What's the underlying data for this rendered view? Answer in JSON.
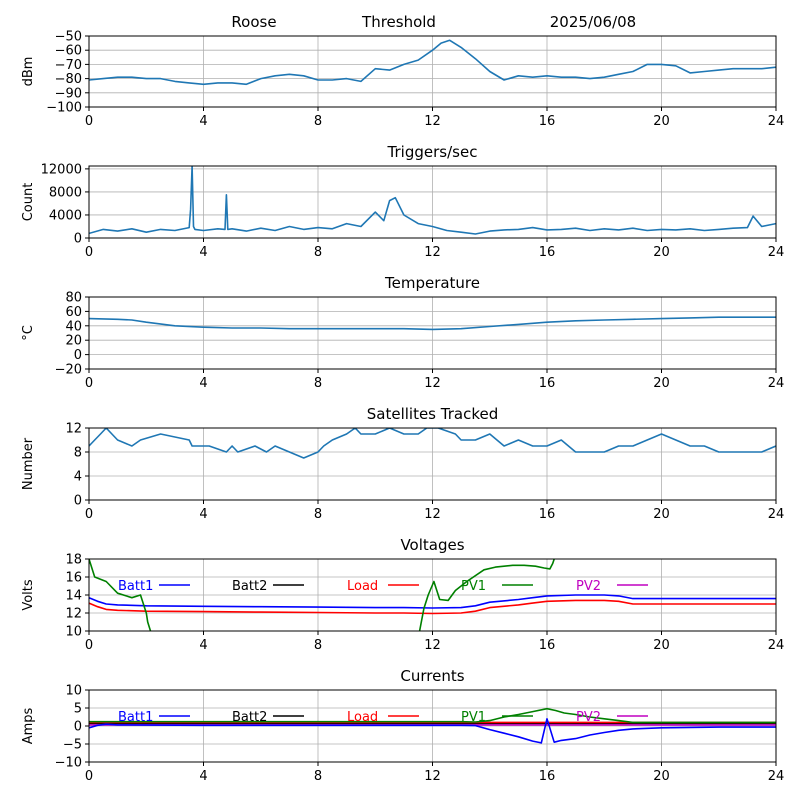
{
  "chart_data": [
    {
      "type": "line",
      "header": {
        "station": "Roose",
        "label": "Threshold",
        "date": "2025/06/08"
      },
      "title": "",
      "xlabel": "",
      "ylabel": "dBm",
      "xlim": [
        0,
        24
      ],
      "ylim": [
        -100,
        -50
      ],
      "xticks": [
        "0",
        "4",
        "8",
        "12",
        "16",
        "20",
        "24"
      ],
      "yticks": [
        "−100",
        "−90",
        "−80",
        "−70",
        "−60",
        "−50"
      ],
      "grid": true,
      "series": [
        {
          "color": "#1f77b4",
          "x": [
            0,
            0.5,
            1,
            1.5,
            2,
            2.5,
            3,
            3.5,
            4,
            4.5,
            5,
            5.5,
            6,
            6.5,
            7,
            7.5,
            8,
            8.5,
            9,
            9.5,
            10,
            10.5,
            11,
            11.5,
            12,
            12.3,
            12.6,
            13,
            13.5,
            14,
            14.5,
            15,
            15.5,
            16,
            16.5,
            17,
            17.5,
            18,
            18.5,
            19,
            19.5,
            20,
            20.5,
            21,
            21.5,
            22,
            22.5,
            23,
            23.5,
            24
          ],
          "y": [
            -81,
            -80,
            -79,
            -79,
            -80,
            -80,
            -82,
            -83,
            -84,
            -83,
            -83,
            -84,
            -80,
            -78,
            -77,
            -78,
            -81,
            -81,
            -80,
            -82,
            -73,
            -74,
            -70,
            -67,
            -60,
            -55,
            -53,
            -58,
            -66,
            -75,
            -81,
            -78,
            -79,
            -78,
            -79,
            -79,
            -80,
            -79,
            -77,
            -75,
            -70,
            -70,
            -71,
            -76,
            -75,
            -74,
            -73,
            -73,
            -73,
            -72
          ]
        }
      ]
    },
    {
      "type": "line",
      "title": "Triggers/sec",
      "xlabel": "",
      "ylabel": "Count",
      "xlim": [
        0,
        24
      ],
      "ylim": [
        0,
        12500
      ],
      "xticks": [
        "0",
        "4",
        "8",
        "12",
        "16",
        "20",
        "24"
      ],
      "yticks": [
        "0",
        "4000",
        "8000",
        "12000"
      ],
      "grid": true,
      "series": [
        {
          "color": "#1f77b4",
          "x": [
            0,
            0.5,
            1,
            1.5,
            2,
            2.5,
            3,
            3.5,
            3.55,
            3.6,
            3.65,
            3.7,
            4,
            4.5,
            4.75,
            4.8,
            4.85,
            5,
            5.5,
            6,
            6.5,
            7,
            7.5,
            8,
            8.5,
            9,
            9.5,
            10,
            10.3,
            10.5,
            10.7,
            11,
            11.5,
            12,
            12.5,
            13,
            13.5,
            14,
            14.5,
            15,
            15.5,
            16,
            16.5,
            17,
            17.5,
            18,
            18.5,
            19,
            19.5,
            20,
            20.5,
            21,
            21.5,
            22,
            22.5,
            23,
            23.2,
            23.5,
            24
          ],
          "y": [
            800,
            1500,
            1200,
            1600,
            1000,
            1500,
            1300,
            1800,
            5000,
            12500,
            2000,
            1500,
            1300,
            1600,
            1500,
            7500,
            1500,
            1600,
            1200,
            1700,
            1300,
            2000,
            1500,
            1800,
            1600,
            2500,
            2000,
            4500,
            3000,
            6500,
            7000,
            4000,
            2500,
            2000,
            1300,
            1000,
            700,
            1200,
            1400,
            1500,
            1800,
            1400,
            1500,
            1700,
            1300,
            1600,
            1400,
            1700,
            1300,
            1500,
            1400,
            1600,
            1300,
            1500,
            1700,
            1800,
            3800,
            2000,
            2500
          ]
        }
      ]
    },
    {
      "type": "line",
      "title": "Temperature",
      "xlabel": "",
      "ylabel": "°C",
      "xlim": [
        0,
        24
      ],
      "ylim": [
        -20,
        80
      ],
      "xticks": [
        "0",
        "4",
        "8",
        "12",
        "16",
        "20",
        "24"
      ],
      "yticks": [
        "−20",
        "0",
        "20",
        "40",
        "60",
        "80"
      ],
      "grid": true,
      "series": [
        {
          "color": "#1f77b4",
          "x": [
            0,
            1,
            1.5,
            2,
            3,
            4,
            5,
            6,
            7,
            8,
            9,
            10,
            11,
            12,
            13,
            14,
            15,
            16,
            17,
            18,
            19,
            20,
            21,
            22,
            23,
            24
          ],
          "y": [
            50,
            49,
            48,
            45,
            40,
            38,
            37,
            37,
            36,
            36,
            36,
            36,
            36,
            35,
            36,
            39,
            42,
            45,
            47,
            48,
            49,
            50,
            51,
            52,
            52,
            52
          ]
        }
      ]
    },
    {
      "type": "line",
      "title": "Satellites Tracked",
      "xlabel": "",
      "ylabel": "Number",
      "xlim": [
        0,
        24
      ],
      "ylim": [
        0,
        12
      ],
      "xticks": [
        "0",
        "4",
        "8",
        "12",
        "16",
        "20",
        "24"
      ],
      "yticks": [
        "0",
        "4",
        "8",
        "12"
      ],
      "grid": true,
      "series": [
        {
          "color": "#1f77b4",
          "x": [
            0,
            0.2,
            0.4,
            0.6,
            0.8,
            1.0,
            1.5,
            1.8,
            2.5,
            3.5,
            3.6,
            4.2,
            4.8,
            5.0,
            5.2,
            5.8,
            6.2,
            6.5,
            7.0,
            7.5,
            8.0,
            8.2,
            8.5,
            9.0,
            9.3,
            9.5,
            10.0,
            10.5,
            11.0,
            11.5,
            11.8,
            12.0,
            12.2,
            12.8,
            13.0,
            13.5,
            14.0,
            14.5,
            15.0,
            15.5,
            16.0,
            16.5,
            17.0,
            17.5,
            18.0,
            18.5,
            19.0,
            19.5,
            20.0,
            20.5,
            21.0,
            21.5,
            22.0,
            22.5,
            23.0,
            23.5,
            24.0
          ],
          "y": [
            9,
            10,
            11,
            12,
            11,
            10,
            9,
            10,
            11,
            10,
            9,
            9,
            8,
            9,
            8,
            9,
            8,
            9,
            8,
            7,
            8,
            9,
            10,
            11,
            12,
            11,
            11,
            12,
            11,
            11,
            12,
            12,
            12,
            11,
            10,
            10,
            11,
            9,
            10,
            9,
            9,
            10,
            8,
            8,
            8,
            9,
            9,
            10,
            11,
            10,
            9,
            9,
            8,
            8,
            8,
            8,
            9
          ]
        }
      ]
    },
    {
      "type": "line",
      "title": "Voltages",
      "xlabel": "",
      "ylabel": "Volts",
      "xlim": [
        0,
        24
      ],
      "ylim": [
        10,
        18
      ],
      "xticks": [
        "0",
        "4",
        "8",
        "12",
        "16",
        "20",
        "24"
      ],
      "yticks": [
        "10",
        "12",
        "14",
        "16",
        "18"
      ],
      "grid": true,
      "legend": [
        {
          "name": "Batt1",
          "color": "#0000ff"
        },
        {
          "name": "Batt2",
          "color": "#000000"
        },
        {
          "name": "Load",
          "color": "#ff0000"
        },
        {
          "name": "PV1",
          "color": "#008000"
        },
        {
          "name": "PV2",
          "color": "#c000c0"
        }
      ],
      "series": [
        {
          "color": "#0000ff",
          "x": [
            0,
            0.3,
            0.6,
            1,
            2,
            4,
            6,
            8,
            10,
            11,
            12,
            13,
            13.5,
            14,
            15,
            15.5,
            16,
            17,
            18,
            18.5,
            19,
            20,
            22,
            24
          ],
          "y": [
            13.7,
            13.3,
            13.0,
            12.9,
            12.8,
            12.75,
            12.7,
            12.65,
            12.6,
            12.6,
            12.55,
            12.6,
            12.8,
            13.2,
            13.5,
            13.7,
            13.9,
            14.0,
            14.0,
            13.9,
            13.6,
            13.6,
            13.6,
            13.6
          ]
        },
        {
          "color": "#ff0000",
          "x": [
            0,
            0.3,
            0.6,
            1,
            2,
            4,
            6,
            8,
            10,
            11,
            12,
            13,
            13.5,
            14,
            15,
            15.5,
            16,
            17,
            18,
            18.5,
            19,
            20,
            22,
            24
          ],
          "y": [
            13.1,
            12.7,
            12.4,
            12.3,
            12.2,
            12.15,
            12.1,
            12.05,
            12.0,
            12.0,
            11.95,
            12.0,
            12.2,
            12.6,
            12.9,
            13.1,
            13.3,
            13.4,
            13.4,
            13.3,
            13.0,
            13.0,
            13.0,
            13.0
          ]
        },
        {
          "color": "#008000",
          "x": [
            0,
            0.2,
            0.6,
            1,
            1.5,
            1.8,
            2.0,
            2.05,
            2.1,
            2.15
          ],
          "y": [
            18,
            16,
            15.5,
            14.2,
            13.7,
            14.0,
            12.0,
            11.0,
            10.5,
            10.0
          ]
        },
        {
          "color": "#008000",
          "x": [
            11.55,
            11.7,
            11.85,
            12.05,
            12.25,
            12.55,
            12.8,
            13.2,
            13.8,
            14.2,
            14.8,
            15.2,
            15.6,
            15.9,
            16.1,
            16.2,
            16.25
          ],
          "y": [
            10.0,
            12.5,
            14.0,
            15.5,
            13.5,
            13.4,
            14.5,
            15.5,
            16.8,
            17.1,
            17.3,
            17.3,
            17.2,
            17.0,
            16.9,
            17.5,
            18
          ]
        }
      ]
    },
    {
      "type": "line",
      "title": "Currents",
      "xlabel": "",
      "ylabel": "Amps",
      "xlim": [
        0,
        24
      ],
      "ylim": [
        -10,
        10
      ],
      "xticks": [
        "0",
        "4",
        "8",
        "12",
        "16",
        "20",
        "24"
      ],
      "yticks": [
        "−10",
        "−5",
        "0",
        "5",
        "10"
      ],
      "grid": true,
      "legend": [
        {
          "name": "Batt1",
          "color": "#0000ff"
        },
        {
          "name": "Batt2",
          "color": "#000000"
        },
        {
          "name": "Load",
          "color": "#ff0000"
        },
        {
          "name": "PV1",
          "color": "#008000"
        },
        {
          "name": "PV2",
          "color": "#c000c0"
        }
      ],
      "series": [
        {
          "color": "#000000",
          "x": [
            0,
            24
          ],
          "y": [
            0.7,
            0.7
          ]
        },
        {
          "color": "#c000c0",
          "x": [
            0,
            24
          ],
          "y": [
            0.3,
            0.3
          ]
        },
        {
          "color": "#ff0000",
          "x": [
            0,
            24
          ],
          "y": [
            1.0,
            1.0
          ]
        },
        {
          "color": "#008000",
          "x": [
            0,
            4,
            8,
            12,
            13,
            13.5,
            14,
            14.5,
            15,
            15.5,
            16,
            16.3,
            16.6,
            17,
            17.5,
            18,
            18.5,
            19,
            20,
            22,
            24
          ],
          "y": [
            1.2,
            1.2,
            1.2,
            1.2,
            1.2,
            1.1,
            1.5,
            2.5,
            3.2,
            4.0,
            4.8,
            4.3,
            3.6,
            3.2,
            2.5,
            2.0,
            1.5,
            1.0,
            1.0,
            1.0,
            1.0
          ]
        },
        {
          "color": "#0000ff",
          "x": [
            0,
            0.3,
            0.6,
            1,
            4,
            8,
            12,
            13,
            13.5,
            14,
            14.5,
            15,
            15.5,
            15.8,
            16.0,
            16.25,
            16.5,
            17,
            17.5,
            18,
            18.5,
            19,
            20,
            22,
            24
          ],
          "y": [
            -0.5,
            0.2,
            0.5,
            0.3,
            0.2,
            0.2,
            0.2,
            0.2,
            0.1,
            -1.0,
            -2.0,
            -3.0,
            -4.2,
            -4.7,
            2.0,
            -4.5,
            -4.0,
            -3.5,
            -2.5,
            -1.8,
            -1.2,
            -0.8,
            -0.5,
            -0.3,
            -0.3
          ]
        }
      ]
    }
  ]
}
